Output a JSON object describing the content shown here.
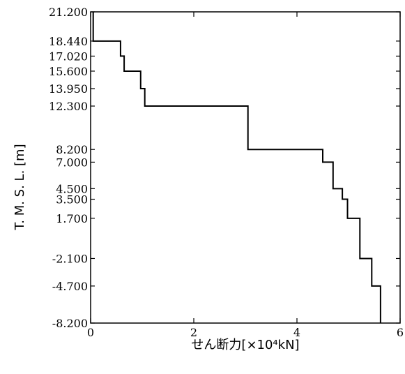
{
  "chart_data": {
    "type": "line",
    "step": true,
    "xlabel": "せん断力[×10⁴kN]",
    "ylabel": "T. M. S. L. [m]",
    "xlim": [
      0,
      6
    ],
    "ylim": [
      -8.2,
      21.2
    ],
    "x_ticks": [
      0,
      2,
      4,
      6
    ],
    "y_ticks": [
      -8.2,
      -4.7,
      -2.1,
      1.7,
      3.5,
      4.5,
      7.0,
      8.2,
      12.3,
      13.95,
      15.6,
      17.02,
      18.44,
      21.2
    ],
    "y_tick_labels": [
      "-8.200",
      "-4.700",
      "-2.100",
      "1.700",
      "3.500",
      "4.500",
      "7.000",
      "8.200",
      "12.300",
      "13.950",
      "15.600",
      "17.020",
      "18.440",
      "21.200"
    ],
    "x_tick_labels": [
      "0",
      "2",
      "4",
      "6"
    ],
    "grid": false,
    "series": [
      {
        "segments": [
          {
            "y_top": 21.2,
            "y_bottom": 18.44,
            "value": 0.05
          },
          {
            "y_top": 18.44,
            "y_bottom": 17.02,
            "value": 0.58
          },
          {
            "y_top": 17.02,
            "y_bottom": 15.6,
            "value": 0.65
          },
          {
            "y_top": 15.6,
            "y_bottom": 13.95,
            "value": 0.97
          },
          {
            "y_top": 13.95,
            "y_bottom": 12.3,
            "value": 1.05
          },
          {
            "y_top": 12.3,
            "y_bottom": 8.2,
            "value": 3.05
          },
          {
            "y_top": 8.2,
            "y_bottom": 7.0,
            "value": 4.5
          },
          {
            "y_top": 7.0,
            "y_bottom": 4.5,
            "value": 4.7
          },
          {
            "y_top": 4.5,
            "y_bottom": 3.5,
            "value": 4.88
          },
          {
            "y_top": 3.5,
            "y_bottom": 1.7,
            "value": 4.98
          },
          {
            "y_top": 1.7,
            "y_bottom": -2.1,
            "value": 5.22
          },
          {
            "y_top": -2.1,
            "y_bottom": -4.7,
            "value": 5.45
          },
          {
            "y_top": -4.7,
            "y_bottom": -8.2,
            "value": 5.62
          }
        ]
      }
    ]
  }
}
